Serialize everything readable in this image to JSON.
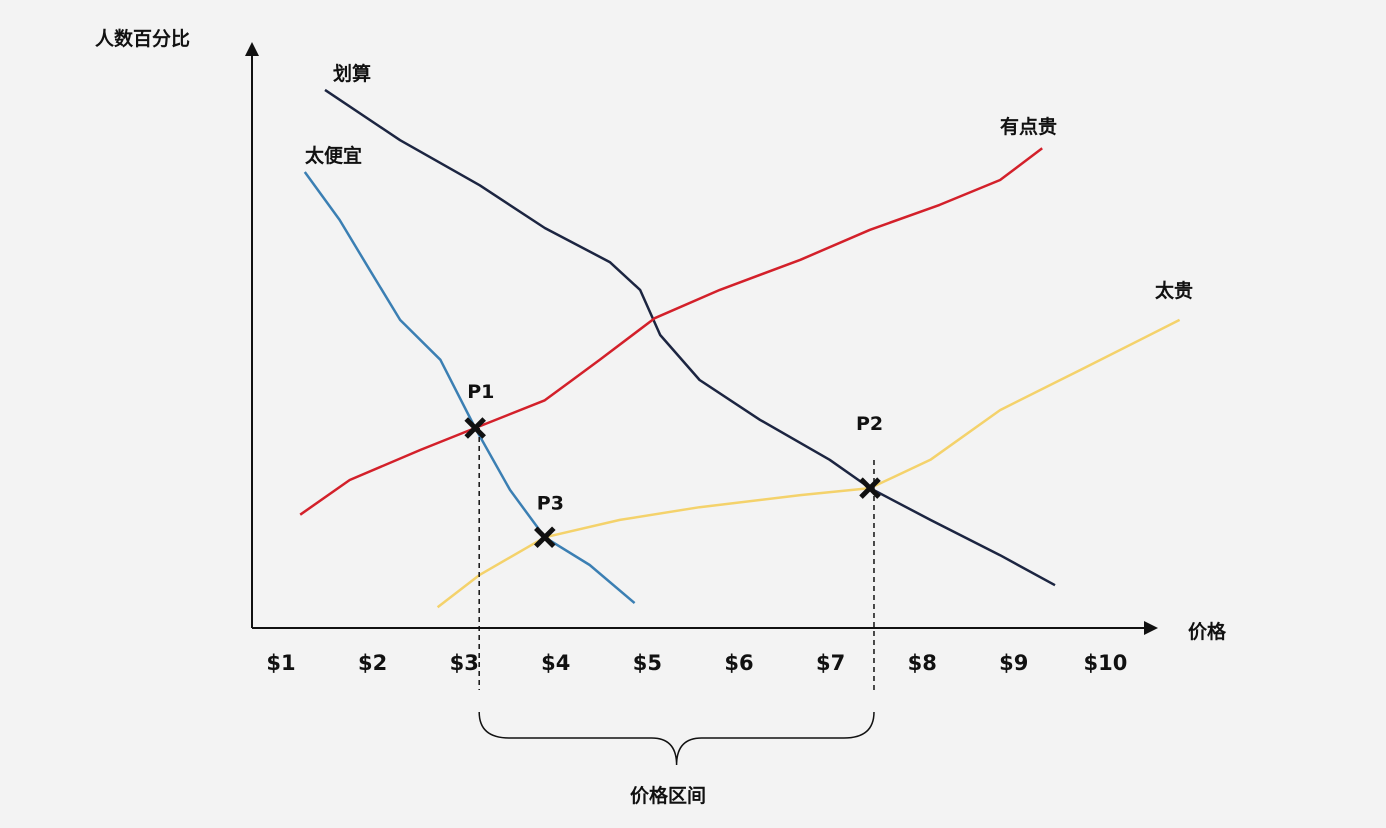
{
  "chart_data": {
    "type": "line",
    "title": "",
    "xlabel": "价格",
    "ylabel": "人数百分比",
    "x_tick_labels": [
      "$1",
      "$2",
      "$3",
      "$4",
      "$5",
      "$6",
      "$7",
      "$8",
      "$9",
      "$10"
    ],
    "x_ticks": [
      1,
      2,
      3,
      4,
      5,
      6,
      7,
      8,
      9,
      10
    ],
    "grid": false,
    "legend": "none",
    "series": [
      {
        "name": "划算",
        "color": "#1c2541",
        "x": [
          1.48,
          2.3,
          3.17,
          3.88,
          4.59,
          4.92,
          5.14,
          5.57,
          6.23,
          6.99,
          7.43,
          8.09,
          8.85,
          9.45
        ],
        "y": [
          93.1,
          84.4,
          76.6,
          69.2,
          63.3,
          58.5,
          50.7,
          42.9,
          36.0,
          29.1,
          24.2,
          18.7,
          12.6,
          7.4
        ]
      },
      {
        "name": "太便宜",
        "color": "#3b7fb3",
        "x": [
          1.26,
          1.64,
          1.97,
          2.3,
          2.74,
          3.12,
          3.5,
          3.88,
          4.37,
          4.86
        ],
        "y": [
          78.9,
          70.6,
          61.9,
          53.3,
          46.4,
          34.6,
          23.9,
          15.7,
          10.9,
          4.3
        ]
      },
      {
        "name": "有点贵",
        "color": "#d3202a",
        "x": [
          1.21,
          1.75,
          2.52,
          3.12,
          3.88,
          4.48,
          5.08,
          5.79,
          6.67,
          7.43,
          8.19,
          8.85,
          9.31
        ],
        "y": [
          19.6,
          25.6,
          30.8,
          34.6,
          39.4,
          46.4,
          53.6,
          58.5,
          63.7,
          68.9,
          73.2,
          77.5,
          83.0
        ]
      },
      {
        "name": "太贵",
        "color": "#f4d26b",
        "x": [
          2.71,
          3.17,
          3.88,
          4.7,
          5.57,
          6.67,
          7.43,
          8.09,
          8.85,
          9.72,
          10.81
        ],
        "y": [
          3.6,
          9.2,
          15.7,
          18.7,
          20.9,
          23.0,
          24.2,
          29.1,
          37.7,
          44.6,
          53.3
        ]
      }
    ],
    "annotations": [
      {
        "label": "P1",
        "x": 3.12,
        "y": 34.6
      },
      {
        "label": "P2",
        "x": 7.43,
        "y": 24.2
      },
      {
        "label": "P3",
        "x": 3.88,
        "y": 15.7
      }
    ],
    "range_brace": {
      "label": "价格区间",
      "from": 3.12,
      "to": 7.43
    }
  }
}
